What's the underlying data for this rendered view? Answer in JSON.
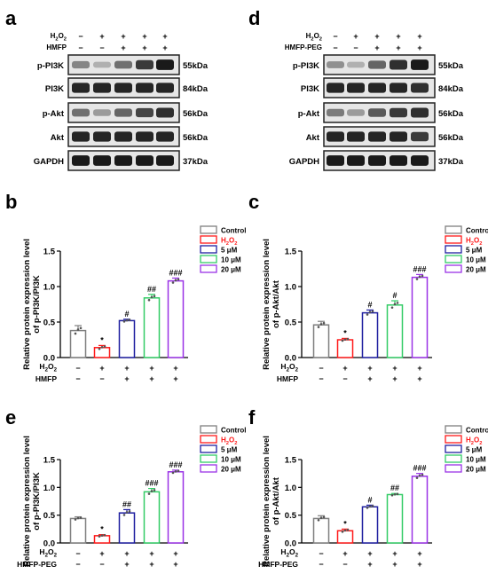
{
  "colors": {
    "control": "#7f7f7f",
    "h2o2": "#ff1a1a",
    "dose5": "#1f1fa0",
    "dose10": "#33cc66",
    "dose20": "#9a33e6",
    "band": "#141414"
  },
  "legend": {
    "entries": [
      {
        "key": "control",
        "label": "Control"
      },
      {
        "key": "h2o2",
        "label": "H2O2",
        "sub": true
      },
      {
        "key": "dose5",
        "label": "5 μM"
      },
      {
        "key": "dose10",
        "label": "10 μM"
      },
      {
        "key": "dose20",
        "label": "20 μM"
      }
    ]
  },
  "blots": [
    {
      "letter": "a",
      "treat_label": "HMFP",
      "h2o2_row": [
        "−",
        "+",
        "+",
        "+",
        "+"
      ],
      "treat_row": [
        "−",
        "−",
        "+",
        "+",
        "+"
      ],
      "rows": [
        {
          "protein": "p-PI3K",
          "size": "55kDa",
          "intensity": [
            0.45,
            0.25,
            0.55,
            0.8,
            0.95
          ]
        },
        {
          "protein": "PI3K",
          "size": "84kDa",
          "intensity": [
            0.9,
            0.9,
            0.9,
            0.9,
            0.9
          ]
        },
        {
          "protein": "p-Akt",
          "size": "56kDa",
          "intensity": [
            0.55,
            0.35,
            0.6,
            0.75,
            0.85
          ]
        },
        {
          "protein": "Akt",
          "size": "56kDa",
          "intensity": [
            0.9,
            0.9,
            0.9,
            0.9,
            0.9
          ]
        },
        {
          "protein": "GAPDH",
          "size": "37kDa",
          "intensity": [
            0.95,
            0.95,
            0.95,
            0.95,
            0.95
          ]
        }
      ]
    },
    {
      "letter": "d",
      "treat_label": "HMFP-PEG",
      "h2o2_row": [
        "−",
        "+",
        "+",
        "+",
        "+"
      ],
      "treat_row": [
        "−",
        "−",
        "+",
        "+",
        "+"
      ],
      "rows": [
        {
          "protein": "p-PI3K",
          "size": "55kDa",
          "intensity": [
            0.4,
            0.25,
            0.6,
            0.85,
            0.95
          ]
        },
        {
          "protein": "PI3K",
          "size": "84kDa",
          "intensity": [
            0.9,
            0.9,
            0.9,
            0.9,
            0.85
          ]
        },
        {
          "protein": "p-Akt",
          "size": "56kDa",
          "intensity": [
            0.5,
            0.35,
            0.65,
            0.8,
            0.85
          ]
        },
        {
          "protein": "Akt",
          "size": "56kDa",
          "intensity": [
            0.9,
            0.9,
            0.9,
            0.9,
            0.8
          ]
        },
        {
          "protein": "GAPDH",
          "size": "37kDa",
          "intensity": [
            0.95,
            0.95,
            0.95,
            0.95,
            0.95
          ]
        }
      ]
    }
  ],
  "chart_data": [
    {
      "letter": "b",
      "type": "bar",
      "ylabel": [
        "Relative protein expression level",
        "of p-PI3K/PI3K"
      ],
      "ylim": [
        0,
        1.5
      ],
      "yticks": [
        "0.0",
        "0.5",
        "1.0",
        "1.5"
      ],
      "treat_label": "HMFP",
      "h2o2_row": [
        "−",
        "+",
        "+",
        "+",
        "+"
      ],
      "treat_row": [
        "−",
        "−",
        "+",
        "+",
        "+"
      ],
      "categories": [
        "Control",
        "H2O2",
        "5 μM",
        "10 μM",
        "20 μM"
      ],
      "values": [
        0.38,
        0.14,
        0.52,
        0.84,
        1.08
      ],
      "errors": [
        0.07,
        0.03,
        0.02,
        0.05,
        0.04
      ],
      "sig": [
        "",
        "*",
        "#",
        "##",
        "###"
      ]
    },
    {
      "letter": "c",
      "type": "bar",
      "ylabel": [
        "Relative protein expression level",
        "of p-Akt/Akt"
      ],
      "ylim": [
        0,
        1.5
      ],
      "yticks": [
        "0.0",
        "0.5",
        "1.0",
        "1.5"
      ],
      "treat_label": "HMFP",
      "h2o2_row": [
        "−",
        "+",
        "+",
        "+",
        "+"
      ],
      "treat_row": [
        "−",
        "−",
        "+",
        "+",
        "+"
      ],
      "categories": [
        "Control",
        "H2O2",
        "5 μM",
        "10 μM",
        "20 μM"
      ],
      "values": [
        0.46,
        0.25,
        0.63,
        0.74,
        1.13
      ],
      "errors": [
        0.05,
        0.02,
        0.04,
        0.06,
        0.04
      ],
      "sig": [
        "",
        "*",
        "#",
        "#",
        "###"
      ]
    },
    {
      "letter": "e",
      "type": "bar",
      "ylabel": [
        "Relative protein expression level",
        "of p-PI3K/PI3K"
      ],
      "ylim": [
        0,
        1.5
      ],
      "yticks": [
        "0.0",
        "0.5",
        "1.0",
        "1.5"
      ],
      "treat_label": "HMFP-PEG",
      "h2o2_row": [
        "−",
        "+",
        "+",
        "+",
        "+"
      ],
      "treat_row": [
        "−",
        "−",
        "+",
        "+",
        "+"
      ],
      "categories": [
        "Control",
        "H2O2",
        "5 μM",
        "10 μM",
        "20 μM"
      ],
      "values": [
        0.44,
        0.13,
        0.54,
        0.92,
        1.28
      ],
      "errors": [
        0.03,
        0.02,
        0.06,
        0.06,
        0.03
      ],
      "sig": [
        "",
        "*",
        "##",
        "###",
        "###"
      ]
    },
    {
      "letter": "f",
      "type": "bar",
      "ylabel": [
        "Relative protein expression level",
        "of p-Akt/Akt"
      ],
      "ylim": [
        0,
        1.5
      ],
      "yticks": [
        "0.0",
        "0.5",
        "1.0",
        "1.5"
      ],
      "treat_label": "HMFP-PEG",
      "h2o2_row": [
        "−",
        "+",
        "+",
        "+",
        "+"
      ],
      "treat_row": [
        "−",
        "−",
        "+",
        "+",
        "+"
      ],
      "categories": [
        "Control",
        "H2O2",
        "5 μM",
        "10 μM",
        "20 μM"
      ],
      "values": [
        0.44,
        0.22,
        0.65,
        0.87,
        1.2
      ],
      "errors": [
        0.05,
        0.03,
        0.03,
        0.02,
        0.05
      ],
      "sig": [
        "",
        "*",
        "#",
        "##",
        "###"
      ]
    }
  ]
}
